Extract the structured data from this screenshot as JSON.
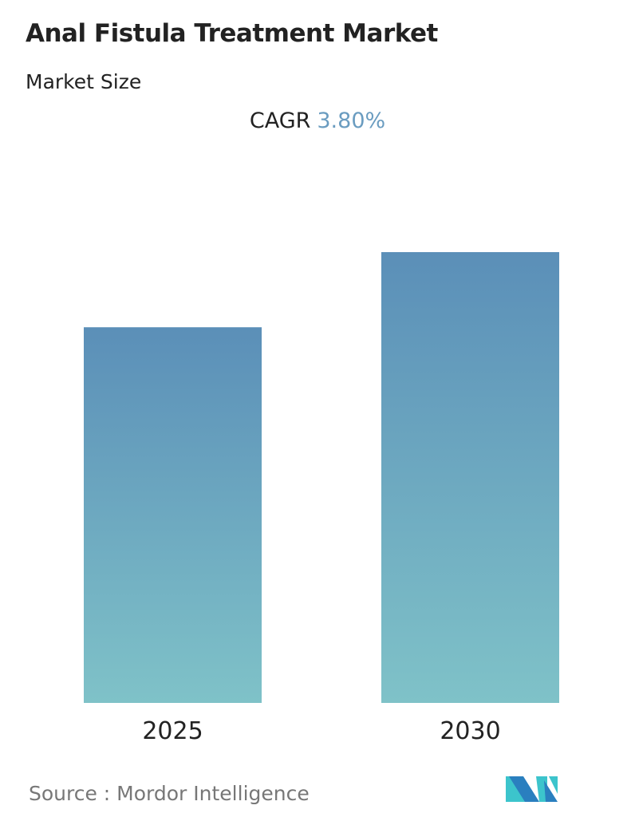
{
  "title": "Anal Fistula Treatment Market",
  "subtitle": "Market Size",
  "cagr": {
    "label": "CAGR",
    "value": "3.80%"
  },
  "source": "Source :  Mordor Intelligence",
  "colors": {
    "bar_top": "#5b8fb8",
    "bar_bottom": "#7fc2c8",
    "cagr_value": "#6a9cc0",
    "logo_dark": "#2a7fbf",
    "logo_light": "#3cc4cc"
  },
  "logo": "Mordor Intelligence logo",
  "chart_data": {
    "type": "bar",
    "categories": [
      "2025",
      "2030"
    ],
    "values": [
      1.0,
      1.2
    ],
    "title": "Anal Fistula Treatment Market",
    "xlabel": "",
    "ylabel": "",
    "grid": false,
    "legend": "none"
  }
}
